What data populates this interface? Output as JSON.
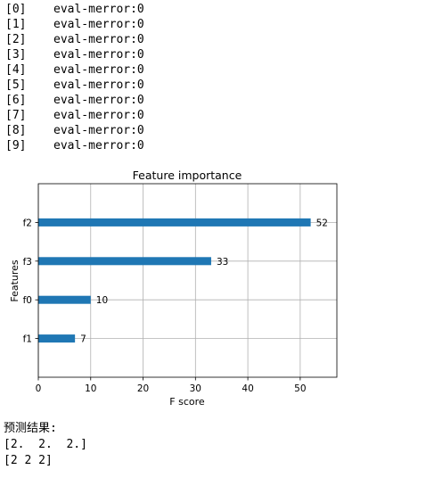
{
  "log": [
    {
      "index": "[0]",
      "text": "eval-merror:0"
    },
    {
      "index": "[1]",
      "text": "eval-merror:0"
    },
    {
      "index": "[2]",
      "text": "eval-merror:0"
    },
    {
      "index": "[3]",
      "text": "eval-merror:0"
    },
    {
      "index": "[4]",
      "text": "eval-merror:0"
    },
    {
      "index": "[5]",
      "text": "eval-merror:0"
    },
    {
      "index": "[6]",
      "text": "eval-merror:0"
    },
    {
      "index": "[7]",
      "text": "eval-merror:0"
    },
    {
      "index": "[8]",
      "text": "eval-merror:0"
    },
    {
      "index": "[9]",
      "text": "eval-merror:0"
    }
  ],
  "chart_data": {
    "type": "bar",
    "orientation": "horizontal",
    "title": "Feature importance",
    "xlabel": "F score",
    "ylabel": "Features",
    "categories": [
      "f2",
      "f3",
      "f0",
      "f1"
    ],
    "values": [
      52,
      33,
      10,
      7
    ],
    "xlim": [
      0,
      57
    ],
    "xticks": [
      0,
      10,
      20,
      30,
      40,
      50
    ],
    "grid": true,
    "bar_color": "#1f77b4"
  },
  "result": {
    "label": "预测结果:",
    "line1": "[2.  2.  2.]",
    "line2": "[2 2 2]"
  }
}
